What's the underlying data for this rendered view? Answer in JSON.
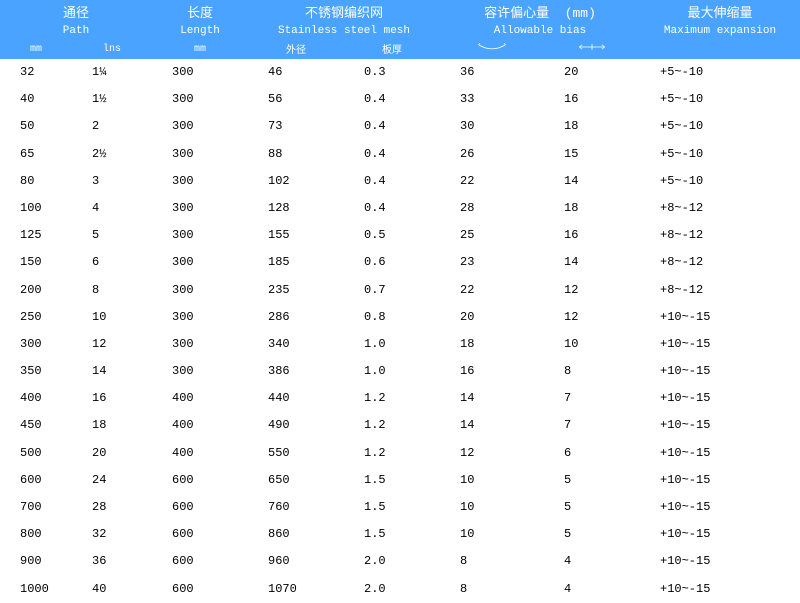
{
  "header": {
    "bg": "#4aa3ff",
    "path": {
      "zh": "通径",
      "en": "Path",
      "u1": "mm",
      "u2": "lns"
    },
    "length": {
      "zh": "长度",
      "en": "Length",
      "u": "mm"
    },
    "mesh": {
      "zh": "不锈钢编织网",
      "en": "Stainless steel mesh",
      "u1": "外径",
      "u2": "板厚"
    },
    "bias": {
      "zh": "容许偏心量",
      "unit_inline": "(mm)",
      "en": "Allowable bias"
    },
    "exp": {
      "zh": "最大伸缩量",
      "en": "Maximum expansion"
    }
  },
  "cols": [
    "mm",
    "lns",
    "length",
    "od",
    "thk",
    "bias1",
    "bias2",
    "exp"
  ],
  "col_widths_pct": [
    9,
    10,
    12,
    12,
    12,
    13,
    12,
    20
  ],
  "rows": [
    [
      "32",
      "1¼",
      "300",
      "46",
      "0.3",
      "36",
      "20",
      "+5~-10"
    ],
    [
      "40",
      "1½",
      "300",
      "56",
      "0.4",
      "33",
      "16",
      "+5~-10"
    ],
    [
      "50",
      "2",
      "300",
      "73",
      "0.4",
      "30",
      "18",
      "+5~-10"
    ],
    [
      "65",
      "2½",
      "300",
      "88",
      "0.4",
      "26",
      "15",
      "+5~-10"
    ],
    [
      "80",
      "3",
      "300",
      "102",
      "0.4",
      "22",
      "14",
      "+5~-10"
    ],
    [
      "100",
      "4",
      "300",
      "128",
      "0.4",
      "28",
      "18",
      "+8~-12"
    ],
    [
      "125",
      "5",
      "300",
      "155",
      "0.5",
      "25",
      "16",
      "+8~-12"
    ],
    [
      "150",
      "6",
      "300",
      "185",
      "0.6",
      "23",
      "14",
      "+8~-12"
    ],
    [
      "200",
      "8",
      "300",
      "235",
      "0.7",
      "22",
      "12",
      "+8~-12"
    ],
    [
      "250",
      "10",
      "300",
      "286",
      "0.8",
      "20",
      "12",
      "+10~-15"
    ],
    [
      "300",
      "12",
      "300",
      "340",
      "1.0",
      "18",
      "10",
      "+10~-15"
    ],
    [
      "350",
      "14",
      "300",
      "386",
      "1.0",
      "16",
      "8",
      "+10~-15"
    ],
    [
      "400",
      "16",
      "400",
      "440",
      "1.2",
      "14",
      "7",
      "+10~-15"
    ],
    [
      "450",
      "18",
      "400",
      "490",
      "1.2",
      "14",
      "7",
      "+10~-15"
    ],
    [
      "500",
      "20",
      "400",
      "550",
      "1.2",
      "12",
      "6",
      "+10~-15"
    ],
    [
      "600",
      "24",
      "600",
      "650",
      "1.5",
      "10",
      "5",
      "+10~-15"
    ],
    [
      "700",
      "28",
      "600",
      "760",
      "1.5",
      "10",
      "5",
      "+10~-15"
    ],
    [
      "800",
      "32",
      "600",
      "860",
      "1.5",
      "10",
      "5",
      "+10~-15"
    ],
    [
      "900",
      "36",
      "600",
      "960",
      "2.0",
      "8",
      "4",
      "+10~-15"
    ],
    [
      "1000",
      "40",
      "600",
      "1070",
      "2.0",
      "8",
      "4",
      "+10~-15"
    ]
  ]
}
